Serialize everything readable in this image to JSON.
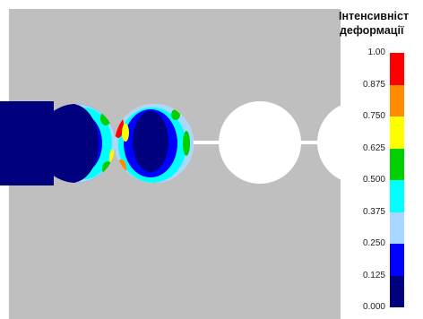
{
  "legend": {
    "title_line1": "Інтенсивніст",
    "title_line2": "деформації",
    "ticks": [
      "1.00",
      "0.875",
      "0.750",
      "0.625",
      "0.500",
      "0.375",
      "0.250",
      "0.125",
      "0.000"
    ],
    "colors": [
      "#ff0000",
      "#ff8c00",
      "#ffff00",
      "#00d000",
      "#00ffff",
      "#a8d8ff",
      "#0000ff",
      "#00007f"
    ]
  },
  "colors": {
    "background": "#bfbfbf",
    "hole": "#ffffff",
    "dark_blue": "#00007f"
  }
}
